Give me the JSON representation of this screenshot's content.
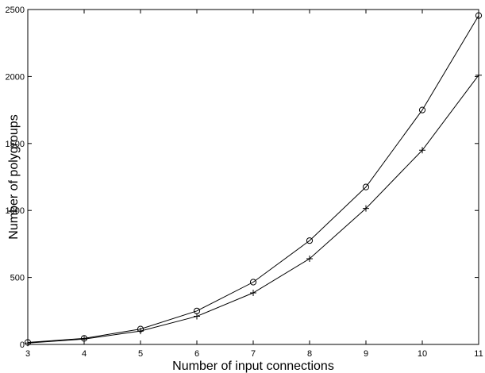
{
  "chart_data": {
    "type": "line",
    "title": "",
    "xlabel": "Number of input connections",
    "ylabel": "Number of polygroups",
    "xlim": [
      3,
      11
    ],
    "ylim": [
      0,
      2500
    ],
    "x_ticks": [
      3,
      4,
      5,
      6,
      7,
      8,
      9,
      10,
      11
    ],
    "y_ticks": [
      0,
      500,
      1000,
      1500,
      2000,
      2500
    ],
    "grid": false,
    "legend": "none",
    "x": [
      3,
      4,
      5,
      6,
      7,
      8,
      9,
      10,
      11
    ],
    "series": [
      {
        "marker": "circle",
        "color": "#000000",
        "values": [
          15,
          45,
          115,
          250,
          465,
          775,
          1175,
          1750,
          2455
        ]
      },
      {
        "marker": "plus",
        "color": "#000000",
        "values": [
          10,
          40,
          100,
          210,
          385,
          640,
          1015,
          1450,
          2010
        ]
      }
    ]
  }
}
